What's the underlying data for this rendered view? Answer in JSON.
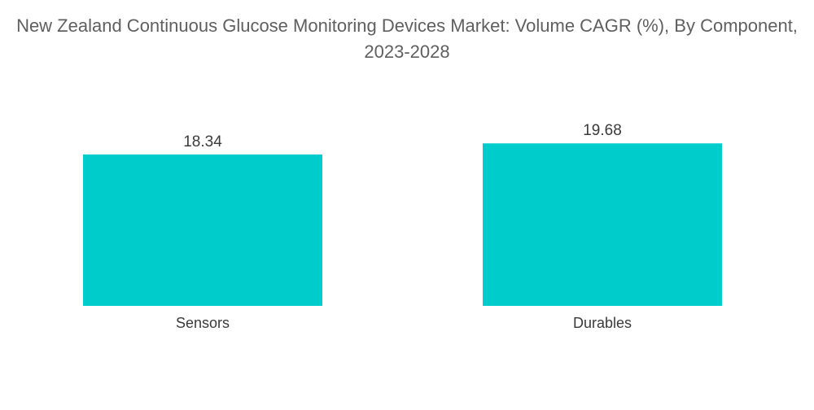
{
  "chart_data": {
    "type": "bar",
    "title": "New Zealand Continuous Glucose Monitoring Devices Market: Volume CAGR (%), By Component, 2023-2028",
    "categories": [
      "Sensors",
      "Durables"
    ],
    "values": [
      18.34,
      19.68
    ],
    "value_labels": [
      "18.34",
      "19.68"
    ],
    "xlabel": "",
    "ylabel": "",
    "ylim": [
      0,
      20
    ],
    "grid": false,
    "legend": "none",
    "bar_color": "#00cccc"
  }
}
